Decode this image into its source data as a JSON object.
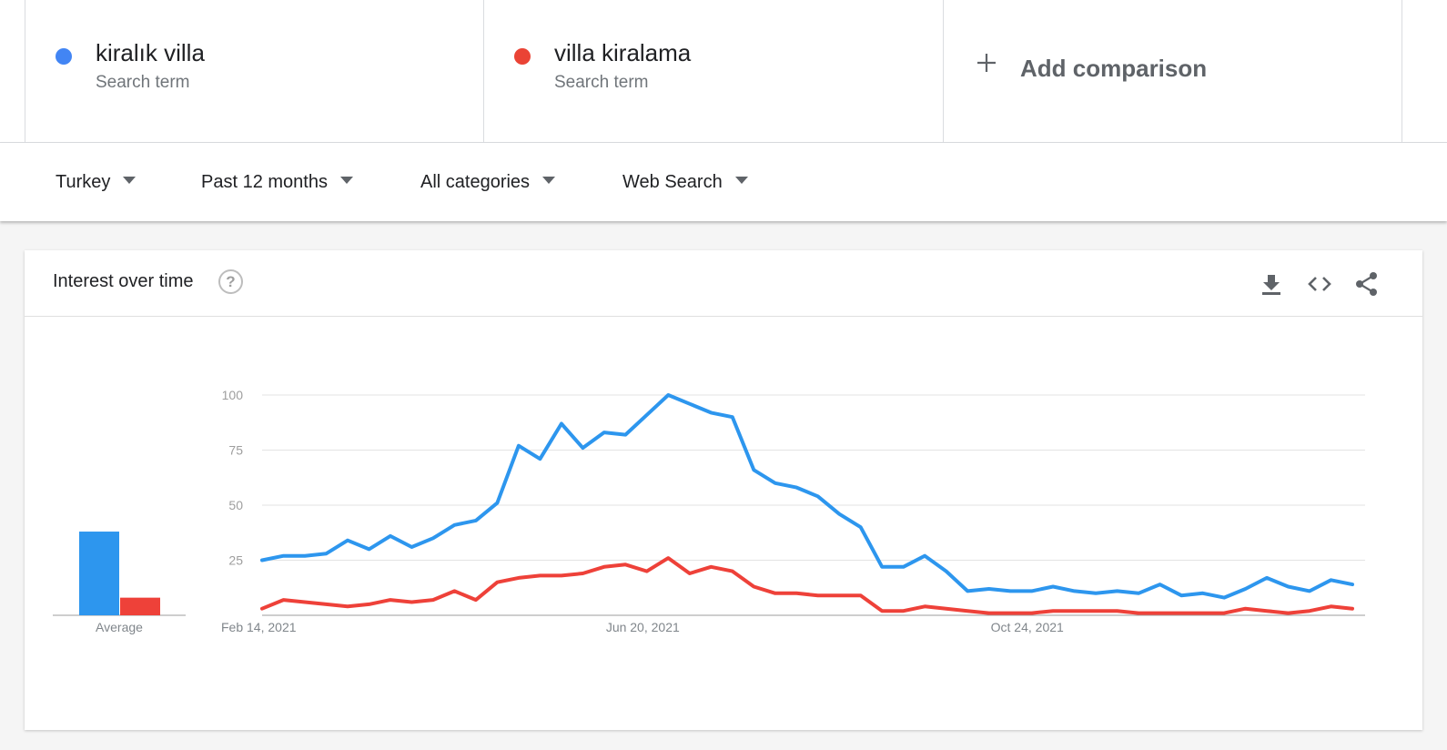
{
  "terms": [
    {
      "name": "kiralık villa",
      "subtitle": "Search term",
      "color": "#4285f4"
    },
    {
      "name": "villa kiralama",
      "subtitle": "Search term",
      "color": "#ea4335"
    }
  ],
  "add_comparison": {
    "icon": "plus-icon",
    "label": "Add comparison"
  },
  "filters": {
    "region": "Turkey",
    "time": "Past 12 months",
    "category": "All categories",
    "search_type": "Web Search"
  },
  "card": {
    "title": "Interest over time",
    "help_icon": "help-icon",
    "help_symbol": "?",
    "actions": [
      "download-icon",
      "embed-code-icon",
      "share-icon"
    ]
  },
  "chart_data": {
    "type": "line",
    "y_ticks": [
      25,
      50,
      75,
      100
    ],
    "ylim": [
      0,
      100
    ],
    "x_tick_labels": [
      {
        "index": 0,
        "label": "Feb 14, 2021"
      },
      {
        "index": 18,
        "label": "Jun 20, 2021"
      },
      {
        "index": 36,
        "label": "Oct 24, 2021"
      }
    ],
    "grid": true,
    "average_label": "Average",
    "averages": [
      38,
      8
    ],
    "series": [
      {
        "name": "kiralık villa",
        "color": "#2d96ee",
        "values": [
          25,
          27,
          27,
          28,
          34,
          30,
          36,
          31,
          35,
          41,
          43,
          51,
          77,
          71,
          87,
          76,
          83,
          82,
          91,
          100,
          96,
          92,
          90,
          66,
          60,
          58,
          54,
          46,
          40,
          22,
          22,
          27,
          20,
          11,
          12,
          11,
          11,
          13,
          11,
          10,
          11,
          10,
          14,
          9,
          10,
          8,
          12,
          17,
          13,
          11,
          16,
          14
        ]
      },
      {
        "name": "villa kiralama",
        "color": "#ee4139",
        "values": [
          3,
          7,
          6,
          5,
          4,
          5,
          7,
          6,
          7,
          11,
          7,
          15,
          17,
          18,
          18,
          19,
          22,
          23,
          20,
          26,
          19,
          22,
          20,
          13,
          10,
          10,
          9,
          9,
          9,
          2,
          2,
          4,
          3,
          2,
          1,
          1,
          1,
          2,
          2,
          2,
          2,
          1,
          1,
          1,
          1,
          1,
          3,
          2,
          1,
          2,
          4,
          3
        ]
      }
    ]
  }
}
